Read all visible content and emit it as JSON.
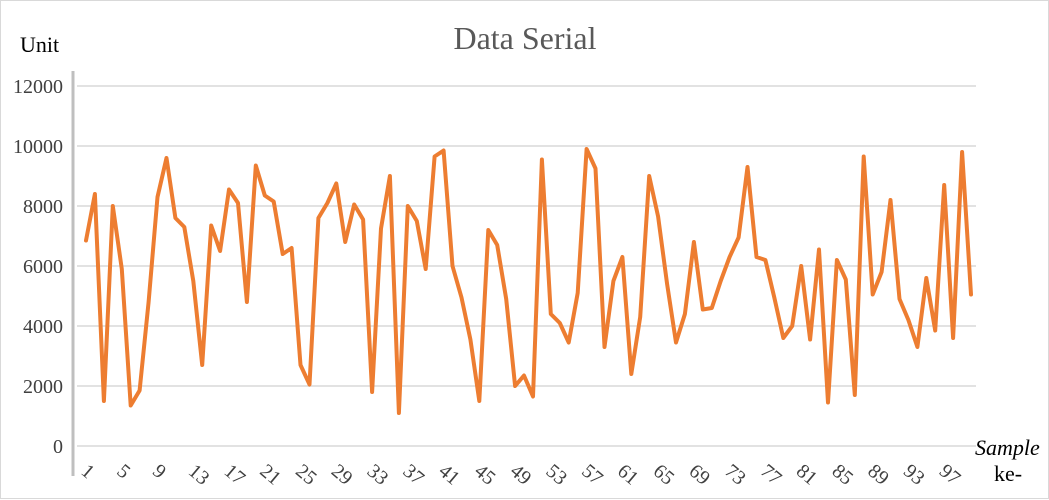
{
  "chart_data": {
    "type": "line",
    "title": "Data Serial",
    "ylabel": "Unit",
    "xlabel": "Sample",
    "xlabel_suffix": "ke-",
    "ylim": [
      0,
      12000
    ],
    "yticks": [
      "0",
      "2000",
      "4000",
      "6000",
      "8000",
      "10000",
      "12000"
    ],
    "x": [
      1,
      2,
      3,
      4,
      5,
      6,
      7,
      8,
      9,
      10,
      11,
      12,
      13,
      14,
      15,
      16,
      17,
      18,
      19,
      20,
      21,
      22,
      23,
      24,
      25,
      26,
      27,
      28,
      29,
      30,
      31,
      32,
      33,
      34,
      35,
      36,
      37,
      38,
      39,
      40,
      41,
      42,
      43,
      44,
      45,
      46,
      47,
      48,
      49,
      50,
      51,
      52,
      53,
      54,
      55,
      56,
      57,
      58,
      59,
      60,
      61,
      62,
      63,
      64,
      65,
      66,
      67,
      68,
      69,
      70,
      71,
      72,
      73,
      74,
      75,
      76,
      77,
      78,
      79,
      80,
      81,
      82,
      83,
      84,
      85,
      86,
      87,
      88,
      89,
      90,
      91,
      92,
      93,
      94,
      95,
      96,
      97,
      98,
      99,
      100
    ],
    "xticks": [
      "1",
      "5",
      "9",
      "13",
      "17",
      "21",
      "25",
      "29",
      "33",
      "37",
      "41",
      "45",
      "49",
      "53",
      "57",
      "61",
      "65",
      "69",
      "73",
      "77",
      "81",
      "85",
      "89",
      "93",
      "97"
    ],
    "grid": true,
    "legend": "none",
    "series": [
      {
        "color": "#ED7D31",
        "values": [
          6850,
          8400,
          1500,
          8000,
          5900,
          1350,
          1850,
          4800,
          8300,
          9600,
          7600,
          7300,
          5500,
          2700,
          7350,
          6500,
          8550,
          8100,
          4800,
          9350,
          8350,
          8150,
          6400,
          6600,
          2700,
          2050,
          7600,
          8100,
          8750,
          6800,
          8050,
          7550,
          1800,
          7250,
          9000,
          1100,
          8000,
          7500,
          5900,
          9650,
          9850,
          6000,
          4950,
          3550,
          1500,
          7200,
          6700,
          4900,
          2000,
          2350,
          1650,
          9550,
          4400,
          4100,
          3450,
          5100,
          9900,
          9250,
          3300,
          5500,
          6300,
          2400,
          4300,
          9000,
          7650,
          5400,
          3450,
          4400,
          6800,
          4550,
          4600,
          5500,
          6300,
          6950,
          9300,
          6300,
          6200,
          4950,
          3600,
          4000,
          6000,
          3550,
          6550,
          1450,
          6200,
          5550,
          1700,
          9650,
          5050,
          5800,
          8200,
          4900,
          4200,
          3300,
          5600,
          3850,
          8700,
          3600,
          9800,
          5050
        ]
      }
    ]
  }
}
